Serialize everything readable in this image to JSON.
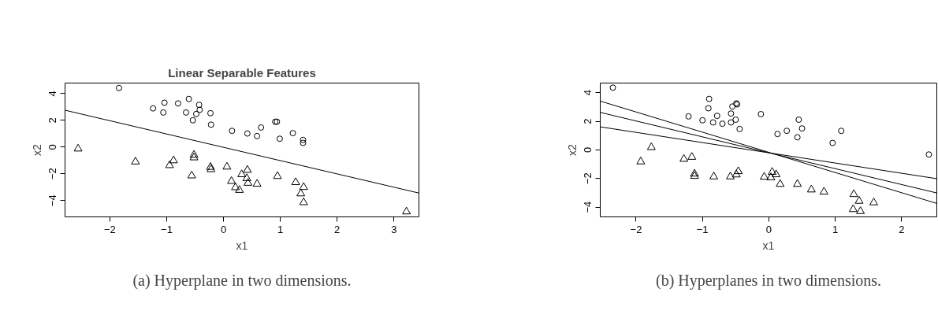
{
  "chart_data": [
    {
      "type": "scatter",
      "title": "Linear Separable Features",
      "xlabel": "x1",
      "ylabel": "x2",
      "xlim": [
        -2.79,
        3.44
      ],
      "ylim": [
        -5.22,
        4.78
      ],
      "xticks": [
        -2,
        -1,
        0,
        1,
        2,
        3
      ],
      "yticks": [
        -4,
        -2,
        0,
        2,
        4
      ],
      "grid": false,
      "annotations": [
        "(a) Hyperplane in two dimensions."
      ],
      "series": [
        {
          "marker": "circle",
          "color": "#000000",
          "x": [
            -1.84,
            -1.24,
            -1.04,
            -1.06,
            -0.8,
            -0.61,
            -0.66,
            -0.43,
            -0.48,
            -0.42,
            -0.54,
            -0.23,
            -0.22,
            0.15,
            0.42,
            0.59,
            0.66,
            0.91,
            0.94,
            0.99,
            1.22,
            1.4,
            1.4
          ],
          "values": [
            4.41,
            2.89,
            3.31,
            2.58,
            3.26,
            3.59,
            2.58,
            3.15,
            2.47,
            2.78,
            2.0,
            2.53,
            1.67,
            1.21,
            1.01,
            0.82,
            1.46,
            1.89,
            1.89,
            0.62,
            1.04,
            0.53,
            0.31
          ]
        },
        {
          "marker": "triangle",
          "color": "#000000",
          "x": [
            -2.56,
            -1.55,
            -0.88,
            -0.95,
            -0.56,
            -0.52,
            -0.52,
            -0.23,
            -0.22,
            0.06,
            0.14,
            0.21,
            0.28,
            0.32,
            0.41,
            0.42,
            0.43,
            0.59,
            0.95,
            1.27,
            1.41,
            1.36,
            1.41,
            3.22
          ],
          "values": [
            -0.13,
            -1.1,
            -1.01,
            -1.37,
            -2.14,
            -0.59,
            -0.79,
            -1.5,
            -1.67,
            -1.48,
            -2.55,
            -3.02,
            -3.22,
            -2.05,
            -2.34,
            -1.72,
            -2.69,
            -2.76,
            -2.18,
            -2.64,
            -3.0,
            -3.48,
            -4.14,
            -4.83
          ]
        },
        {
          "type": "line",
          "color": "#000000",
          "x": [
            -2.79,
            3.44
          ],
          "values": [
            2.75,
            -3.44
          ]
        }
      ]
    },
    {
      "type": "scatter",
      "xlabel": "x1",
      "ylabel": "x2",
      "xlim": [
        -2.54,
        2.53
      ],
      "ylim": [
        -4.68,
        4.67
      ],
      "xticks": [
        -2,
        -1,
        0,
        1,
        2
      ],
      "yticks": [
        -4,
        -2,
        0,
        2,
        4
      ],
      "grid": false,
      "annotations": [
        "(b) Hyperplanes in two dimensions."
      ],
      "series": [
        {
          "marker": "circle",
          "color": "#000000",
          "x": [
            -2.35,
            -0.9,
            -0.91,
            -1.21,
            -1.0,
            -0.84,
            -0.78,
            -0.7,
            -0.57,
            -0.57,
            -0.55,
            -0.49,
            -0.48,
            -0.5,
            -0.44,
            -0.12,
            0.13,
            0.27,
            0.43,
            0.45,
            0.5,
            0.96,
            1.09,
            2.41
          ],
          "values": [
            4.35,
            3.56,
            2.91,
            2.34,
            2.07,
            1.92,
            2.38,
            1.83,
            2.54,
            1.92,
            3.03,
            3.25,
            3.18,
            2.11,
            1.46,
            2.5,
            1.11,
            1.33,
            0.88,
            2.11,
            1.5,
            0.49,
            1.33,
            -0.32
          ]
        },
        {
          "marker": "triangle",
          "color": "#000000",
          "x": [
            -1.77,
            -1.93,
            -1.28,
            -1.16,
            -1.12,
            -1.12,
            -0.83,
            -0.58,
            -0.49,
            -0.46,
            -0.07,
            0.03,
            0.05,
            0.11,
            0.17,
            0.43,
            0.64,
            0.83,
            1.28,
            1.36,
            1.58,
            1.27,
            1.38
          ],
          "values": [
            0.18,
            -0.82,
            -0.64,
            -0.5,
            -1.67,
            -1.83,
            -1.87,
            -1.87,
            -1.73,
            -1.5,
            -1.89,
            -1.93,
            -1.55,
            -1.72,
            -2.39,
            -2.39,
            -2.78,
            -2.93,
            -3.1,
            -3.57,
            -3.68,
            -4.15,
            -4.29
          ]
        },
        {
          "type": "line",
          "color": "#000000",
          "x": [
            -2.54,
            2.53
          ],
          "values": [
            3.41,
            -3.74
          ]
        },
        {
          "type": "line",
          "color": "#000000",
          "x": [
            -2.54,
            2.53
          ],
          "values": [
            2.62,
            -3.01
          ]
        },
        {
          "type": "line",
          "color": "#000000",
          "x": [
            -2.54,
            2.53
          ],
          "values": [
            1.61,
            -2.01
          ]
        }
      ]
    }
  ]
}
